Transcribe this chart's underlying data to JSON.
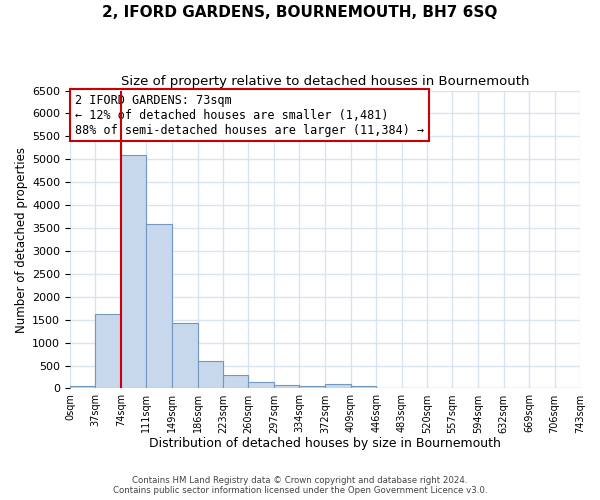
{
  "title": "2, IFORD GARDENS, BOURNEMOUTH, BH7 6SQ",
  "subtitle": "Size of property relative to detached houses in Bournemouth",
  "xlabel": "Distribution of detached houses by size in Bournemouth",
  "ylabel": "Number of detached properties",
  "bin_edges": [
    0,
    37,
    74,
    111,
    149,
    186,
    223,
    260,
    297,
    334,
    372,
    409,
    446,
    483,
    520,
    557,
    594,
    632,
    669,
    706,
    743
  ],
  "bin_values": [
    50,
    1630,
    5100,
    3580,
    1430,
    590,
    300,
    150,
    80,
    50,
    100,
    50,
    0,
    0,
    0,
    0,
    0,
    0,
    0,
    0
  ],
  "bar_color": "#c8d8ec",
  "bar_edge_color": "#7098c0",
  "property_line_x": 74,
  "property_line_color": "#cc0000",
  "annotation_box_text": "2 IFORD GARDENS: 73sqm\n← 12% of detached houses are smaller (1,481)\n88% of semi-detached houses are larger (11,384) →",
  "annotation_box_color": "#cc0000",
  "ylim": [
    0,
    6500
  ],
  "yticks": [
    0,
    500,
    1000,
    1500,
    2000,
    2500,
    3000,
    3500,
    4000,
    4500,
    5000,
    5500,
    6000,
    6500
  ],
  "tick_labels": [
    "0sqm",
    "37sqm",
    "74sqm",
    "111sqm",
    "149sqm",
    "186sqm",
    "223sqm",
    "260sqm",
    "297sqm",
    "334sqm",
    "372sqm",
    "409sqm",
    "446sqm",
    "483sqm",
    "520sqm",
    "557sqm",
    "594sqm",
    "632sqm",
    "669sqm",
    "706sqm",
    "743sqm"
  ],
  "footer_line1": "Contains HM Land Registry data © Crown copyright and database right 2024.",
  "footer_line2": "Contains public sector information licensed under the Open Government Licence v3.0.",
  "bg_color": "#ffffff",
  "grid_color": "#d8e4f0",
  "title_fontsize": 11,
  "subtitle_fontsize": 9.5,
  "xlabel_fontsize": 9,
  "ylabel_fontsize": 8.5,
  "annot_fontsize": 8.5
}
